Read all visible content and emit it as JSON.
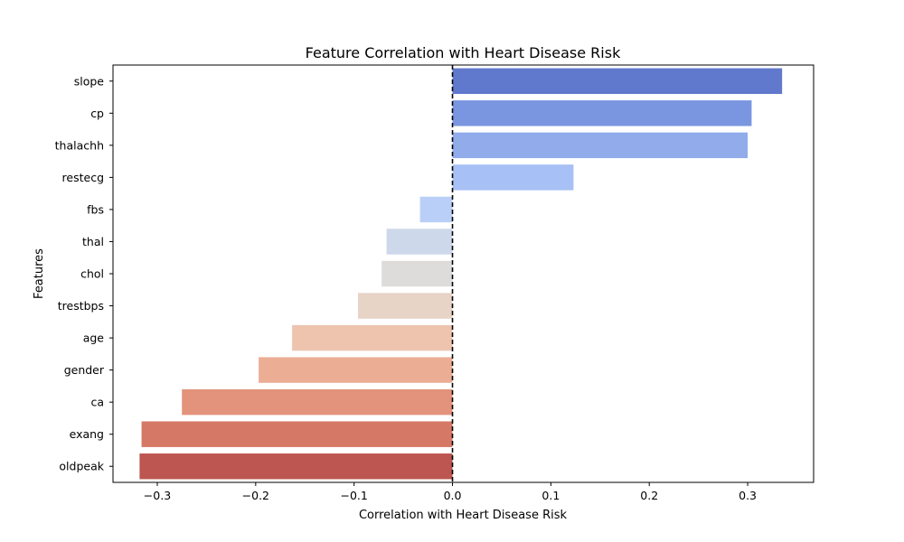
{
  "chart_data": {
    "type": "bar",
    "orientation": "horizontal",
    "title": "Feature Correlation with Heart Disease Risk",
    "xlabel": "Correlation with Heart Disease Risk",
    "ylabel": "Features",
    "xlim": [
      -0.345,
      0.367
    ],
    "xticks": [
      -0.3,
      -0.2,
      -0.1,
      0.0,
      0.1,
      0.2,
      0.3
    ],
    "xtick_labels": [
      "−0.3",
      "−0.2",
      "−0.1",
      "0.0",
      "0.1",
      "0.2",
      "0.3"
    ],
    "grid": false,
    "legend": "none",
    "reference_line": {
      "x": 0,
      "style": "dashed",
      "color": "#000000"
    },
    "categories": [
      "slope",
      "cp",
      "thalachh",
      "restecg",
      "fbs",
      "thal",
      "chol",
      "trestbps",
      "age",
      "gender",
      "ca",
      "exang",
      "oldpeak"
    ],
    "values": [
      0.335,
      0.304,
      0.3,
      0.123,
      -0.033,
      -0.067,
      -0.072,
      -0.096,
      -0.163,
      -0.197,
      -0.275,
      -0.316,
      -0.318
    ],
    "colors": [
      "#6179cc",
      "#7a96e0",
      "#91abeb",
      "#a7c0f5",
      "#bacff8",
      "#cdd8ea",
      "#dddcdb",
      "#e8d3c7",
      "#eec4af",
      "#ebae95",
      "#e3937b",
      "#d57866",
      "#bd5650"
    ]
  }
}
